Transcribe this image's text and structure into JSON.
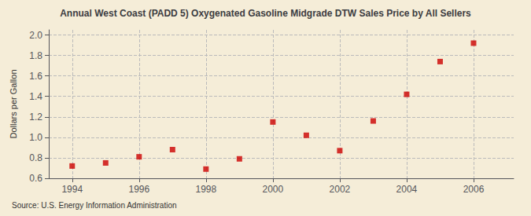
{
  "chart_data": {
    "type": "scatter",
    "title": "Annual West Coast (PADD 5) Oxygenated Gasoline Midgrade DTW Sales Price by All Sellers",
    "ylabel": "Dollars per Gallon",
    "annotations": [
      "Source: U.S. Energy Information Administration"
    ],
    "x": [
      1994,
      1995,
      1996,
      1997,
      1998,
      1999,
      2000,
      2001,
      2002,
      2003,
      2004,
      2005,
      2006
    ],
    "values": [
      0.72,
      0.75,
      0.81,
      0.88,
      0.69,
      0.79,
      1.15,
      1.02,
      0.87,
      1.16,
      1.42,
      1.74,
      1.92
    ],
    "xlim": [
      1993.3,
      2007.2
    ],
    "xticks": [
      1994,
      1996,
      1998,
      2000,
      2002,
      2004,
      2006
    ],
    "ylim": [
      0.6,
      2.05
    ],
    "yticks": [
      0.6,
      0.8,
      {
        "value": 1,
        "label": "1.0"
      },
      1.2,
      1.4,
      1.6,
      1.8,
      {
        "value": 2,
        "label": "2.0"
      }
    ],
    "color": "#cc0000",
    "marker": "square",
    "grid": true
  }
}
